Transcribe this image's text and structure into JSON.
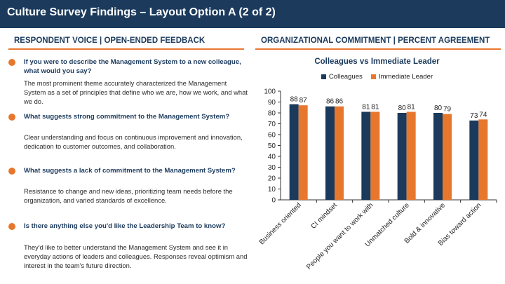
{
  "title": "Culture Survey Findings – Layout Option A (2 of 2)",
  "left": {
    "heading": "RESPONDENT VOICE | OPEN-ENDED FEEDBACK",
    "items": [
      {
        "question": "If you were to describe the Management System to a new colleague, what would you say?",
        "answer": "The most prominent theme accurately characterized the Management System as a set of principles that define who we are, how we work, and what we do."
      },
      {
        "question": "What suggests strong commitment to the Management System?",
        "answer": "Clear understanding and focus on continuous improvement and innovation, dedication to customer outcomes, and collaboration."
      },
      {
        "question": "What suggests a lack of commitment to the Management System?",
        "answer": "Resistance to change and new ideas, prioritizing team needs before the organization, and varied standards of excellence."
      },
      {
        "question": "Is there anything else you'd like the Leadership Team to know?",
        "answer": "They'd like to better understand the Management System and see it in everyday actions of leaders and colleagues. Responses reveal optimism and interest in the team's future direction."
      }
    ]
  },
  "right": {
    "heading": "ORGANIZATIONAL COMMITMENT | PERCENT AGREEMENT"
  },
  "colors": {
    "navy": "#1b3a5c",
    "orange": "#e8772e"
  },
  "chart_data": {
    "type": "bar",
    "title": "Colleagues vs Immediate Leader",
    "categories": [
      "Business oriented",
      "CI mindset",
      "People you want to work with",
      "Unmatched culture",
      "Bold & innovative",
      "Bias toward action"
    ],
    "series": [
      {
        "name": "Colleagues",
        "values": [
          88,
          86,
          81,
          80,
          80,
          73
        ],
        "color": "#1b3a5c"
      },
      {
        "name": "Immediate Leader",
        "values": [
          87,
          86,
          81,
          81,
          79,
          74
        ],
        "color": "#e8772e"
      }
    ],
    "yticks": [
      0,
      10,
      20,
      30,
      40,
      50,
      60,
      70,
      80,
      90,
      100
    ],
    "ylim": [
      0,
      100
    ],
    "xlabel": "",
    "ylabel": "",
    "legend": "top-center",
    "grid": false
  }
}
